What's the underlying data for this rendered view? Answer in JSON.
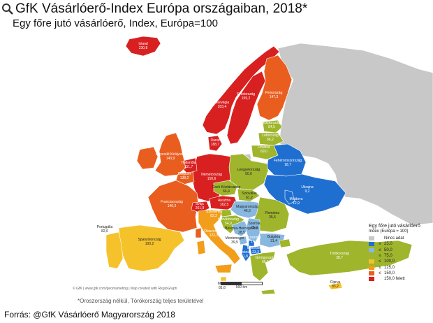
{
  "header": {
    "title": "GfK Vásárlóerő-Index Európa országaiban, 2018*",
    "subtitle": "Egy főre jutó vásárlóerő, Index, Európa=100"
  },
  "footnote": "*Oroszország nélkül, Törökország teljes területével",
  "source": "Forrás: @GfK Vásárlóerő Magyarország 2018",
  "credit": "© GfK | www.gfk.com/geomarketing | Map created with RegioGraph",
  "scale": "500 km",
  "legend": {
    "title": "Egy főre jutó vásárlóerő",
    "subtitle": "Index (Európa = 100)",
    "items": [
      {
        "sym": "",
        "label": "Nincs adat",
        "color": "#c8c8c8"
      },
      {
        "sym": "≤",
        "label": "25,0",
        "color": "#1f6fd1"
      },
      {
        "sym": "≤",
        "label": "50,0",
        "color": "#88b8e0"
      },
      {
        "sym": "≤",
        "label": "75,0",
        "color": "#9fb52c"
      },
      {
        "sym": "≤",
        "label": "100,0",
        "color": "#f6c22c"
      },
      {
        "sym": "≤",
        "label": "125,0",
        "color": "#f29e1a"
      },
      {
        "sym": "≤",
        "label": "150,0",
        "color": "#e95e1f"
      },
      {
        "sym": "",
        "label": "150,0 felett",
        "color": "#d92020"
      }
    ]
  },
  "countries": [
    {
      "name": "Izland",
      "value": "230,8"
    },
    {
      "name": "Norvégia",
      "value": "203,4"
    },
    {
      "name": "Svédország",
      "value": "159,2"
    },
    {
      "name": "Finnország",
      "value": "147,3"
    },
    {
      "name": "Észtország",
      "value": "84,5"
    },
    {
      "name": "Lettország",
      "value": "66,2"
    },
    {
      "name": "Litvánia",
      "value": "69,0"
    },
    {
      "name": "Írország",
      "value": "141,1"
    },
    {
      "name": "Egyesült Királyság",
      "value": "143,9"
    },
    {
      "name": "Dánia",
      "value": "188,7"
    },
    {
      "name": "Hollandia",
      "value": "151,7"
    },
    {
      "name": "Belgium",
      "value": "138,2"
    },
    {
      "name": "Németország",
      "value": "150,6"
    },
    {
      "name": "Lengyelország",
      "value": "50,6"
    },
    {
      "name": "Fehéroroszország",
      "value": "18,7"
    },
    {
      "name": "Ukrajna",
      "value": "9,2"
    },
    {
      "name": "Moldova",
      "value": "12,9"
    },
    {
      "name": "Franciaország",
      "value": "140,2"
    },
    {
      "name": "Svájc",
      "value": "261,9"
    },
    {
      "name": "Cseh Köztársaság",
      "value": "66,4"
    },
    {
      "name": "Szlovákia",
      "value": "61,2"
    },
    {
      "name": "Ausztria",
      "value": "162,5"
    },
    {
      "name": "Magyarország",
      "value": "46,6"
    },
    {
      "name": "Románia",
      "value": "35,6"
    },
    {
      "name": "Horvátország",
      "value": "54,0"
    },
    {
      "name": "Szlovénia",
      "value": "82,2"
    },
    {
      "name": "Szerbia",
      "value": "25,9"
    },
    {
      "name": "Bosznia-Hercegovina",
      "value": "28,5"
    },
    {
      "name": "Montenegró",
      "value": "39,5"
    },
    {
      "name": "Koszovó",
      "value": "14,9"
    },
    {
      "name": "Macedónia",
      "value": "23,3"
    },
    {
      "name": "Albánia",
      "value": "21,8"
    },
    {
      "name": "Bulgária",
      "value": "31,4"
    },
    {
      "name": "Görögország",
      "value": "66,1"
    },
    {
      "name": "Portugália",
      "value": "82,6"
    },
    {
      "name": "Spanyolország",
      "value": "100,2"
    },
    {
      "name": "Olaszország",
      "value": "123,1"
    },
    {
      "name": "Málta",
      "value": "81,6"
    },
    {
      "name": "Törökország",
      "value": "38,7"
    },
    {
      "name": "Ciprus",
      "value": "83,2"
    }
  ],
  "colors": {
    "no_data": "#c8c8c8",
    "band_25": "#1f6fd1",
    "band_50": "#88b8e0",
    "band_75": "#9fb52c",
    "band_100": "#f6c22c",
    "band_125": "#f29e1a",
    "band_150": "#e95e1f",
    "band_over_150": "#d92020",
    "sea": "#ffffff",
    "border": "#ffffff"
  }
}
